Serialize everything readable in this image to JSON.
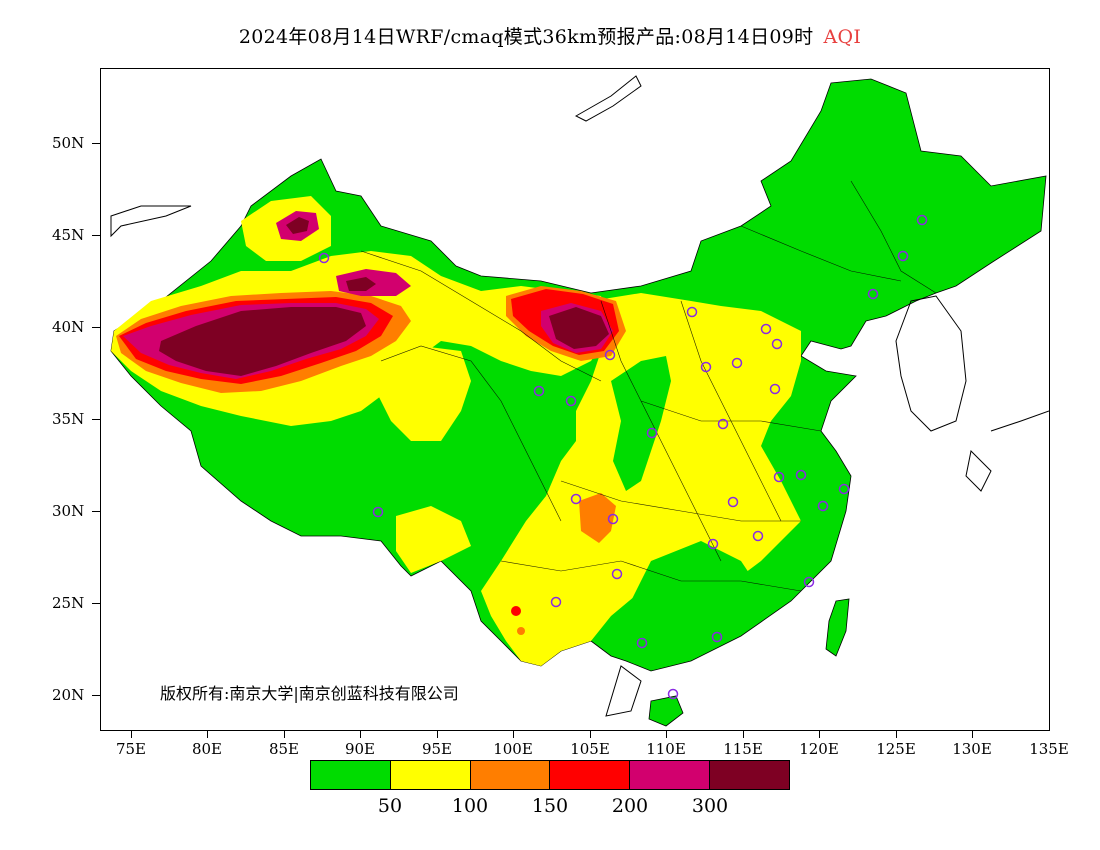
{
  "title": {
    "main": "2024年08月14日WRF/cmaq模式36km预报产品:08月14日09时",
    "variable": "AQI"
  },
  "y_axis_labels": [
    "50N",
    "45N",
    "40N",
    "35N",
    "30N",
    "25N",
    "20N"
  ],
  "x_axis_labels": [
    "75E",
    "80E",
    "85E",
    "90E",
    "95E",
    "100E",
    "105E",
    "110E",
    "115E",
    "120E",
    "125E",
    "130E",
    "135E"
  ],
  "copyright": "版权所有:南京大学|南京创蓝科技有限公司",
  "legend": {
    "colors": [
      "#00dc00",
      "#ffff00",
      "#ff7e00",
      "#ff0000",
      "#d2006e",
      "#7e0023"
    ],
    "labels": [
      "50",
      "100",
      "150",
      "200",
      "300"
    ]
  },
  "map_colors": {
    "good": "#00dc00",
    "moderate": "#ffff00",
    "usg": "#ff7e00",
    "unhealthy": "#ff0000",
    "very_unhealthy": "#d2006e",
    "hazardous": "#7e0023",
    "station_marker": "#8a2be2"
  }
}
